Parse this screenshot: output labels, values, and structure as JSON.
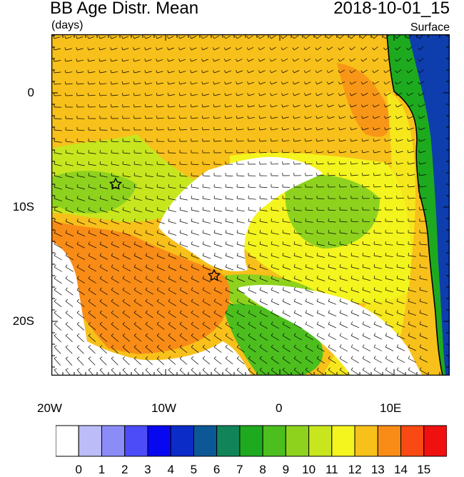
{
  "header": {
    "title": "BB Age Distr. Mean",
    "units": "(days)",
    "datetime": "2018-10-01_15",
    "level": "Surface"
  },
  "axes": {
    "lat_labels": [
      "0",
      "10S",
      "20S"
    ],
    "lon_labels": [
      "20W",
      "10W",
      "0",
      "10E"
    ]
  },
  "colorbar": {
    "labels": [
      "0",
      "1",
      "2",
      "3",
      "4",
      "5",
      "6",
      "7",
      "8",
      "9",
      "10",
      "11",
      "12",
      "13",
      "14",
      "15"
    ],
    "colors": [
      "#ffffff",
      "#bcbcf8",
      "#8c8cf8",
      "#4c4cf8",
      "#0808f0",
      "#0c2cc8",
      "#0c5896",
      "#12845a",
      "#1eaa1e",
      "#4cbe1e",
      "#8ed21e",
      "#c8e61e",
      "#f4f41e",
      "#f8c01a",
      "#f88c16",
      "#f84a12",
      "#f01010"
    ]
  },
  "map_colors": {
    "age_9": "#4cbe1e",
    "age_10": "#8ed21e",
    "age_11": "#c8e61e",
    "age_12": "#f4f41e",
    "age_13": "#f8c01a",
    "age_14": "#f88c16",
    "low_age": "#ffffff",
    "land_coast": "#1eaa1e",
    "land_interior": "#0c2cc8"
  },
  "markers": {
    "icon": "star-icon",
    "count": 2
  }
}
